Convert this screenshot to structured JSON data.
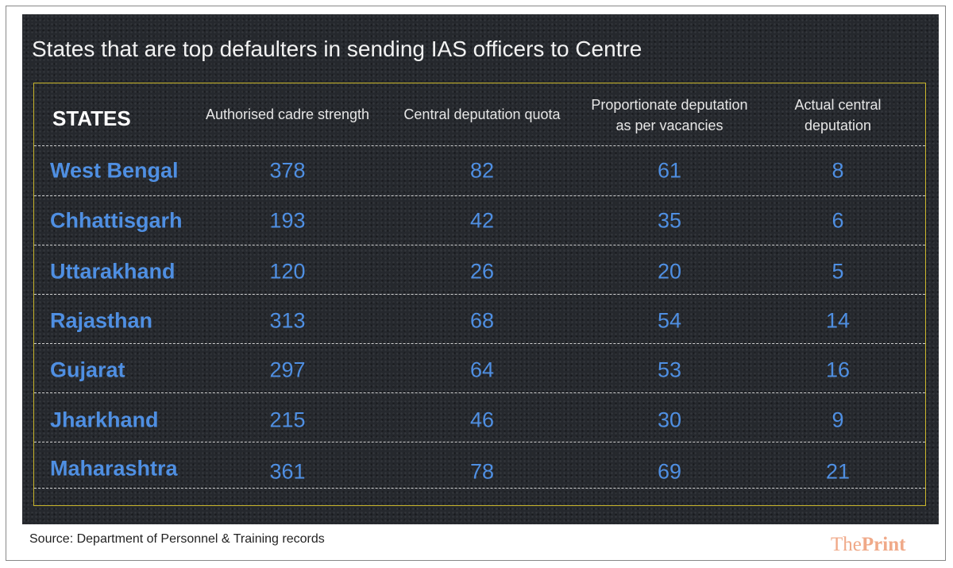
{
  "title": "States that are top defaulters in sending IAS officers to Centre",
  "table": {
    "header": [
      "STATES",
      "Authorised cadre strength",
      "Central deputation quota",
      "Proportionate deputation as per vacancies",
      "Actual central deputation"
    ],
    "rows": [
      [
        "West Bengal",
        378,
        82,
        61,
        8
      ],
      [
        "Chhattisgarh",
        193,
        42,
        35,
        6
      ],
      [
        "Uttarakhand",
        120,
        26,
        20,
        5
      ],
      [
        "Rajasthan",
        313,
        68,
        54,
        14
      ],
      [
        "Gujarat",
        297,
        64,
        53,
        16
      ],
      [
        "Jharkhand",
        215,
        46,
        30,
        9
      ],
      [
        "Maharashtra",
        361,
        78,
        69,
        21
      ]
    ]
  },
  "source": "Source: Department of Personnel & Training records",
  "logo": {
    "prefix": "The",
    "name": "Print"
  }
}
